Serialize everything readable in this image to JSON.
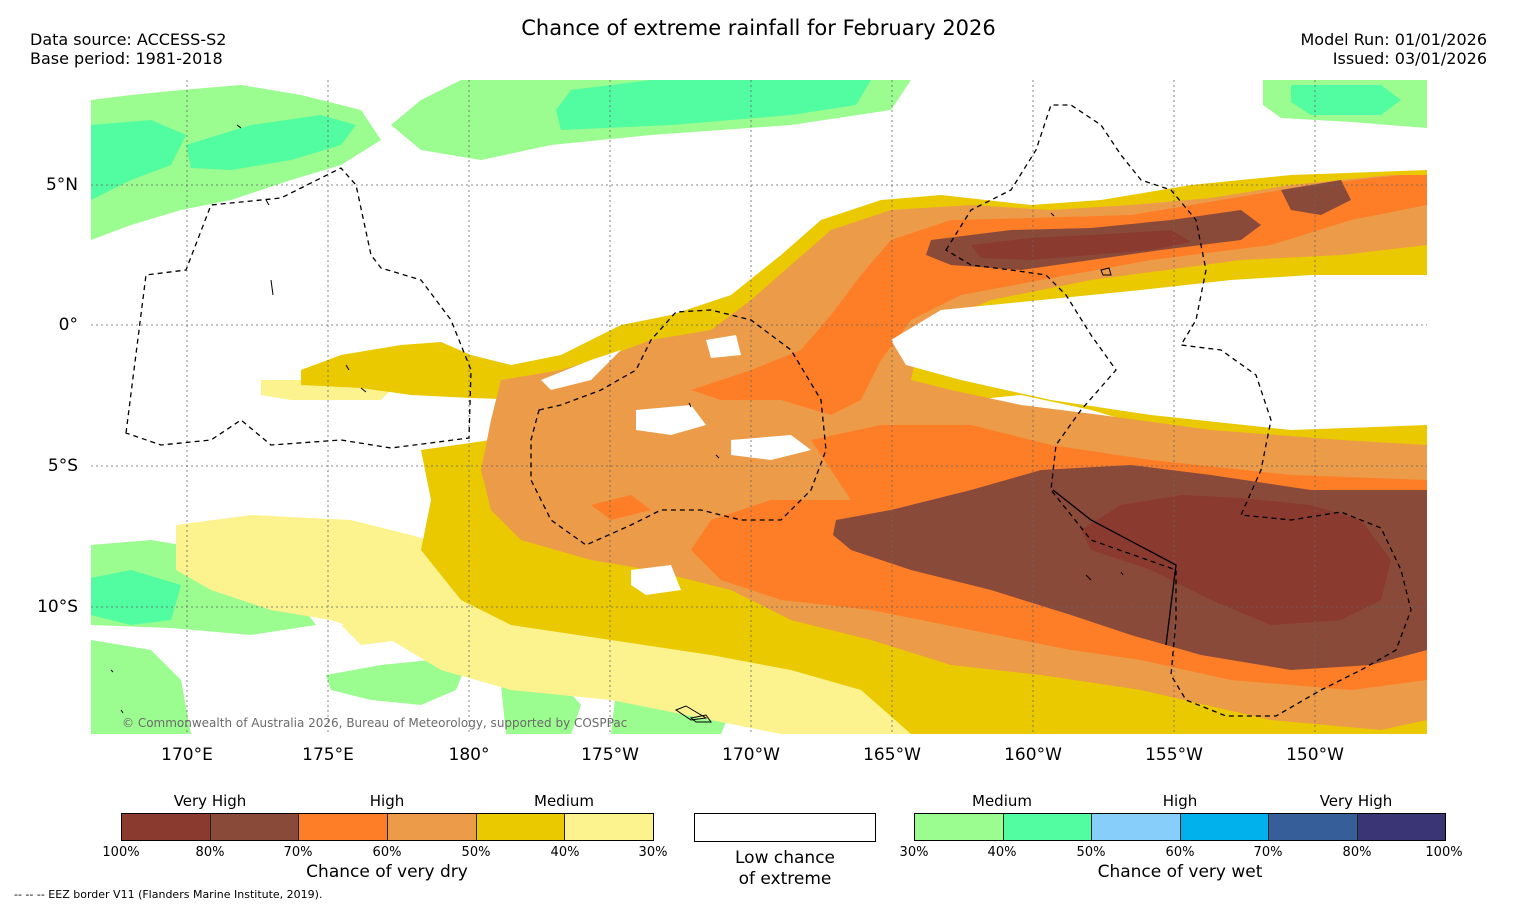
{
  "header": {
    "title": "Chance of extreme rainfall for February 2026",
    "data_source": "Data source: ACCESS-S2",
    "base_period": "Base period: 1981-2018",
    "model_run": "Model Run: 01/01/2026",
    "issued": "Issued: 03/01/2026"
  },
  "map": {
    "longitude_labels": [
      "170°E",
      "175°E",
      "180°",
      "175°W",
      "170°W",
      "165°W",
      "160°W",
      "155°W",
      "150°W"
    ],
    "latitude_labels": [
      "5°N",
      "0°",
      "5°S",
      "10°S"
    ],
    "copyright": "© Commonwealth of Australia 2026, Bureau of Meteorology, supported by COSPPac"
  },
  "legend": {
    "dry": {
      "categories": [
        "Very High",
        "High",
        "Medium"
      ],
      "colors": [
        "#8a3a2f",
        "#8a4a3a",
        "#fd7e26",
        "#ec9b48",
        "#eac900",
        "#fcf38e"
      ],
      "ticks": [
        "100%",
        "80%",
        "70%",
        "60%",
        "50%",
        "40%",
        "30%"
      ],
      "title": "Chance of very dry"
    },
    "neutral": {
      "line1": "Low chance",
      "line2": "of extreme"
    },
    "wet": {
      "categories": [
        "Medium",
        "High",
        "Very High"
      ],
      "colors": [
        "#9bfc8f",
        "#52fca1",
        "#87cefa",
        "#00b1ec",
        "#365f9a",
        "#3a3574"
      ],
      "ticks": [
        "30%",
        "40%",
        "50%",
        "60%",
        "70%",
        "80%",
        "100%"
      ],
      "title": "Chance of very wet"
    }
  },
  "footer": {
    "eez_note": "--  --  -- EEZ border V11 (Flanders Marine Institute, 2019)."
  },
  "colors": {
    "light_green": "#9bfc8f",
    "green": "#52fca1",
    "pale_yellow": "#fcf38e",
    "yellow": "#eac900",
    "light_orange": "#ec9b48",
    "orange": "#fd7e26",
    "brown": "#8a4a3a",
    "dark_brown": "#8a3a2f"
  }
}
